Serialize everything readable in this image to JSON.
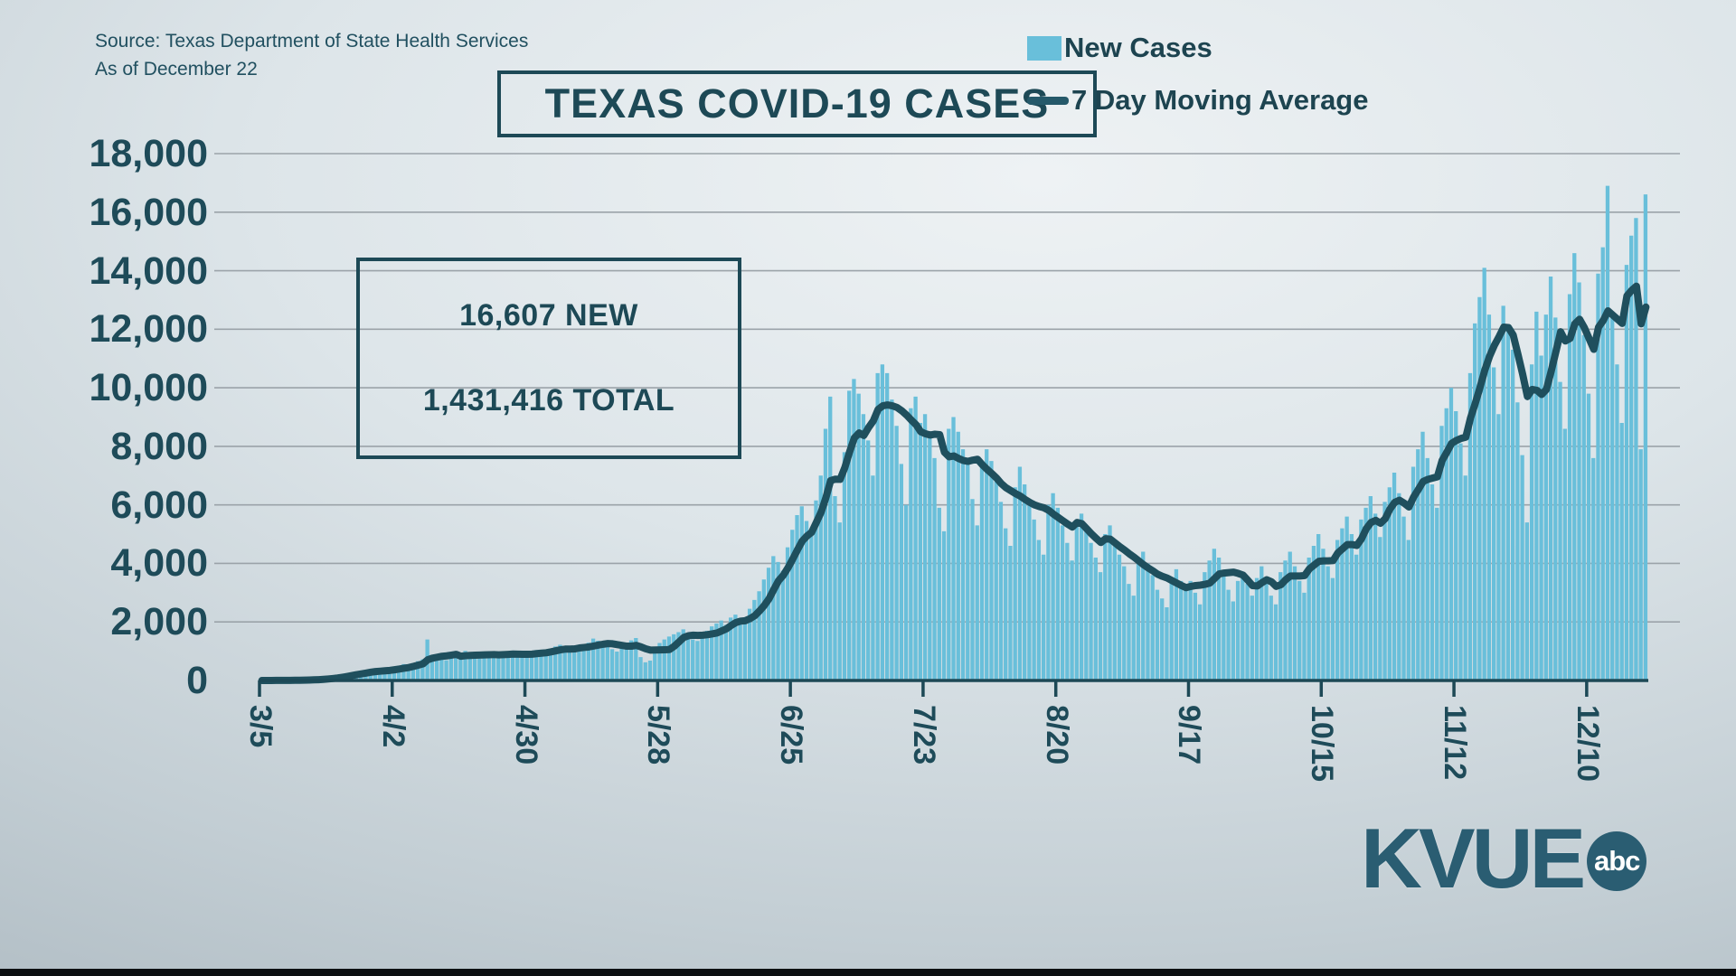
{
  "header": {
    "source_line1": "Source: Texas Department of State Health Services",
    "source_line2": "As of December 22",
    "title": "TEXAS COVID-19 CASES"
  },
  "legend": {
    "bar_label": "New Cases",
    "line_label": "7 Day Moving Average"
  },
  "stats_box": {
    "new_label": "16,607 NEW",
    "total_label": "1,431,416 TOTAL"
  },
  "branding": {
    "station": "KVUE",
    "network": "abc"
  },
  "colors": {
    "bar": "#69bfda",
    "line": "#1f4f5d",
    "text": "#1d4956",
    "grid": "#9ba3a9",
    "axis": "#1d4956",
    "logo": "#2a5d72",
    "bottom_strip": "#0c0f11"
  },
  "chart_data": {
    "type": "bar",
    "title": "TEXAS COVID-19 CASES",
    "x_start": "3/5",
    "x_end": "12/22",
    "x_tick_labels": [
      "3/5",
      "4/2",
      "4/30",
      "5/28",
      "6/25",
      "7/23",
      "8/20",
      "9/17",
      "10/15",
      "11/12",
      "12/10"
    ],
    "x_tick_interval_days": 28,
    "y_tick_values": [
      0,
      2000,
      4000,
      6000,
      8000,
      10000,
      12000,
      14000,
      16000,
      18000
    ],
    "y_tick_labels": [
      "0",
      "2,000",
      "4,000",
      "6,000",
      "8,000",
      "10,000",
      "12,000",
      "14,000",
      "16,000",
      "18,000"
    ],
    "ylim": [
      0,
      18000
    ],
    "grid": true,
    "legend_position": "top-right",
    "series": [
      {
        "name": "New Cases",
        "type": "bar",
        "color": "#69bfda",
        "daily_values": [
          0,
          2,
          3,
          5,
          6,
          8,
          10,
          14,
          18,
          24,
          32,
          44,
          60,
          80,
          105,
          130,
          160,
          195,
          230,
          270,
          310,
          280,
          330,
          370,
          350,
          320,
          360,
          400,
          440,
          500,
          560,
          520,
          590,
          660,
          720,
          1400,
          880,
          800,
          740,
          690,
          840,
          900,
          950,
          1010,
          860,
          790,
          740,
          880,
          930,
          990,
          950,
          900,
          850,
          810,
          860,
          920,
          970,
          980,
          1040,
          960,
          900,
          1080,
          1160,
          1220,
          1140,
          1060,
          1000,
          1120,
          1200,
          1290,
          1430,
          1360,
          1270,
          1160,
          1070,
          990,
          1110,
          1240,
          1370,
          1450,
          800,
          620,
          680,
          1130,
          1280,
          1400,
          1500,
          1580,
          1650,
          1750,
          1550,
          1400,
          1350,
          1550,
          1700,
          1850,
          1950,
          2050,
          1900,
          2150,
          2250,
          2050,
          1950,
          2450,
          2750,
          3050,
          3450,
          3850,
          4250,
          4050,
          3750,
          4550,
          5150,
          5650,
          5950,
          5450,
          4950,
          6150,
          7000,
          8600,
          9700,
          6300,
          5400,
          7800,
          9900,
          10300,
          9800,
          9100,
          8200,
          7000,
          10500,
          10800,
          10500,
          9600,
          8700,
          7400,
          6000,
          9300,
          9700,
          8800,
          9100,
          8400,
          7600,
          5900,
          5100,
          8600,
          9000,
          8500,
          7900,
          7400,
          6200,
          5300,
          7300,
          7900,
          7500,
          6800,
          6100,
          5200,
          4600,
          6600,
          7300,
          6700,
          6100,
          5500,
          4800,
          4300,
          6000,
          6400,
          5900,
          5300,
          4700,
          4100,
          5400,
          5700,
          5200,
          4700,
          4200,
          3700,
          5000,
          5300,
          4800,
          4300,
          3900,
          3300,
          2900,
          4100,
          4400,
          4000,
          3600,
          3100,
          2800,
          2500,
          3500,
          3800,
          3400,
          3100,
          3400,
          3000,
          2600,
          3700,
          4100,
          4500,
          4200,
          3600,
          3100,
          2700,
          3400,
          3700,
          3300,
          2900,
          3500,
          3900,
          3400,
          2900,
          2600,
          3700,
          4100,
          4400,
          3900,
          3400,
          3000,
          4200,
          4600,
          5000,
          4500,
          3900,
          3500,
          4800,
          5200,
          5600,
          5000,
          4300,
          5500,
          5900,
          6300,
          5700,
          4900,
          6100,
          6600,
          7100,
          6400,
          5600,
          4800,
          7300,
          7900,
          8500,
          7600,
          6700,
          5900,
          8700,
          9300,
          10000,
          9200,
          8100,
          7000,
          10500,
          12200,
          13100,
          14100,
          12500,
          10700,
          9100,
          12800,
          12100,
          11300,
          9500,
          7700,
          5400,
          10800,
          12600,
          11100,
          12500,
          13800,
          12400,
          10200,
          8600,
          13200,
          14600,
          13600,
          11800,
          9800,
          7600,
          13900,
          14800,
          16900,
          12600,
          10800,
          8800,
          14200,
          15200,
          15800,
          7900,
          16607
        ]
      },
      {
        "name": "7 Day Moving Average",
        "type": "line",
        "color": "#1f4f5d",
        "derived_from": "7-day trailing mean of New Cases"
      }
    ],
    "annotations": {
      "latest_new_cases": 16607,
      "cumulative_total": 1431416,
      "as_of": "December 22"
    }
  }
}
